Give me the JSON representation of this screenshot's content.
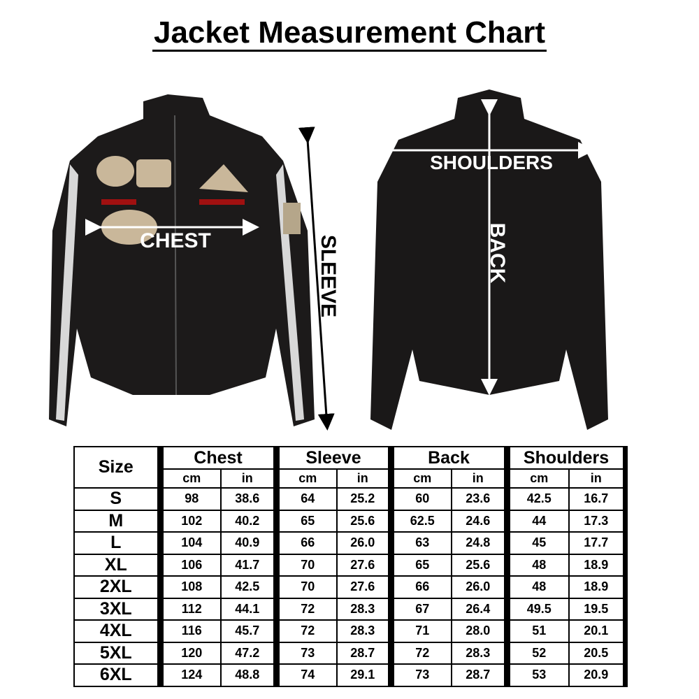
{
  "title": "Jacket Measurement Chart",
  "image_labels": {
    "chest": "CHEST",
    "sleeve": "SLEEVE",
    "shoulders": "SHOULDERS",
    "back": "BACK"
  },
  "table": {
    "size_header": "Size",
    "groups": [
      "Chest",
      "Sleeve",
      "Back",
      "Shoulders"
    ],
    "units": [
      "cm",
      "in"
    ],
    "rows": [
      {
        "size": "S",
        "values": [
          "98",
          "38.6",
          "64",
          "25.2",
          "60",
          "23.6",
          "42.5",
          "16.7"
        ]
      },
      {
        "size": "M",
        "values": [
          "102",
          "40.2",
          "65",
          "25.6",
          "62.5",
          "24.6",
          "44",
          "17.3"
        ]
      },
      {
        "size": "L",
        "values": [
          "104",
          "40.9",
          "66",
          "26.0",
          "63",
          "24.8",
          "45",
          "17.7"
        ]
      },
      {
        "size": "XL",
        "values": [
          "106",
          "41.7",
          "70",
          "27.6",
          "65",
          "25.6",
          "48",
          "18.9"
        ]
      },
      {
        "size": "2XL",
        "values": [
          "108",
          "42.5",
          "70",
          "27.6",
          "66",
          "26.0",
          "48",
          "18.9"
        ]
      },
      {
        "size": "3XL",
        "values": [
          "112",
          "44.1",
          "72",
          "28.3",
          "67",
          "26.4",
          "49.5",
          "19.5"
        ]
      },
      {
        "size": "4XL",
        "values": [
          "116",
          "45.7",
          "72",
          "28.3",
          "71",
          "28.0",
          "51",
          "20.1"
        ]
      },
      {
        "size": "5XL",
        "values": [
          "120",
          "47.2",
          "73",
          "28.7",
          "72",
          "28.3",
          "52",
          "20.5"
        ]
      },
      {
        "size": "6XL",
        "values": [
          "124",
          "48.8",
          "74",
          "29.1",
          "73",
          "28.7",
          "53",
          "20.9"
        ]
      }
    ]
  }
}
